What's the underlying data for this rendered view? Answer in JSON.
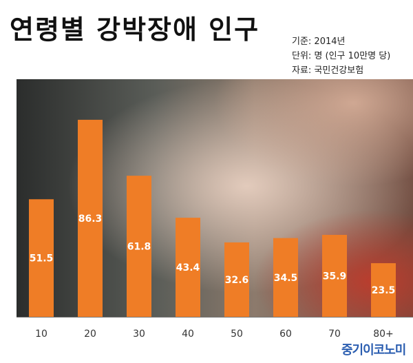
{
  "header": {
    "title": "연령별 강박장애 인구",
    "notes": [
      "기준: 2014년",
      "단위: 명 (인구 10만명 당)",
      "자료: 국민건강보험"
    ]
  },
  "brand": "중기이코노미",
  "colors": {
    "bar": "#ef7d26",
    "axis": "#777777"
  },
  "chart_data": {
    "type": "bar",
    "categories": [
      "10",
      "20",
      "30",
      "40",
      "50",
      "60",
      "70",
      "80+"
    ],
    "values": [
      51.5,
      86.3,
      61.8,
      43.4,
      32.6,
      34.5,
      35.9,
      23.5
    ],
    "ylim": [
      0,
      92
    ],
    "grid": false,
    "legend": "none",
    "background": "photo"
  }
}
